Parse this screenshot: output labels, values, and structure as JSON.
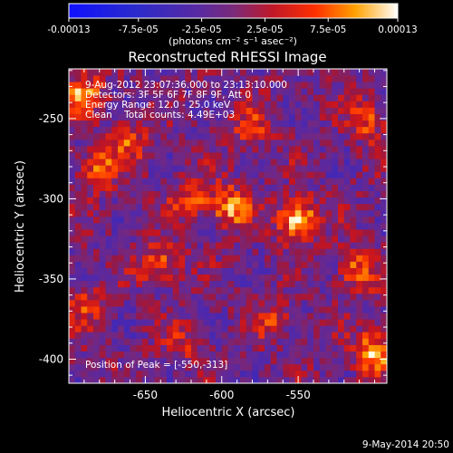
{
  "chart_data": {
    "type": "heatmap",
    "title": "Reconstructed RHESSI Image",
    "xlabel": "Heliocentric X (arcsec)",
    "ylabel": "Heliocentric Y (arcsec)",
    "xlim": [
      -700,
      -492
    ],
    "ylim": [
      -415,
      -219
    ],
    "x_ticks": [
      -650,
      -600,
      -550
    ],
    "y_ticks": [
      -250,
      -300,
      -350,
      -400
    ],
    "x_tick_labels": [
      "-650",
      "-600",
      "-550"
    ],
    "y_tick_labels": [
      "-250",
      "-300",
      "-350",
      "-400"
    ],
    "colorbar": {
      "ticks": [
        -0.00013,
        -7.5e-05,
        -2.5e-05,
        2.5e-05,
        7.5e-05,
        0.00013
      ],
      "tick_labels": [
        "-0.00013",
        "-7.5e-05",
        "-2.5e-05",
        "2.5e-05",
        "7.5e-05",
        "0.00013"
      ],
      "unit_label": "(photons cm⁻² s⁻¹ asec⁻²)",
      "range": [
        -0.00013,
        0.00013
      ]
    },
    "annotations": {
      "time_range": "9-Aug-2012 23:07:36.000 to 23:13:10.000",
      "detectors": "Detectors: 3F 5F 6F 7F 8F 9F, Att 0",
      "energy": "Energy Range: 12.0 - 25.0 keV",
      "clean": "Clean    Total counts: 4.49E+03",
      "peak": "Position of Peak = [-550,-313]"
    },
    "peak": {
      "x": -550,
      "y": -313
    },
    "hotspots": [
      {
        "x": -550,
        "y": -313,
        "amp": 0.00013
      },
      {
        "x": -595,
        "y": -305,
        "amp": 0.0001
      },
      {
        "x": -680,
        "y": -280,
        "amp": 8e-05
      },
      {
        "x": -690,
        "y": -235,
        "amp": 9e-05
      },
      {
        "x": -640,
        "y": -340,
        "amp": 8e-05
      },
      {
        "x": -620,
        "y": -300,
        "amp": 7e-05
      },
      {
        "x": -500,
        "y": -395,
        "amp": 0.00011
      },
      {
        "x": -512,
        "y": -345,
        "amp": 8e-05
      },
      {
        "x": -505,
        "y": -250,
        "amp": 7e-05
      },
      {
        "x": -580,
        "y": -255,
        "amp": 6e-05
      },
      {
        "x": -660,
        "y": -265,
        "amp": 6e-05
      },
      {
        "x": -690,
        "y": -365,
        "amp": 6e-05
      },
      {
        "x": -565,
        "y": -375,
        "amp": 5e-05
      },
      {
        "x": -625,
        "y": -390,
        "amp": 4e-05
      }
    ]
  },
  "footer": {
    "date": "9-May-2014 20:50"
  }
}
